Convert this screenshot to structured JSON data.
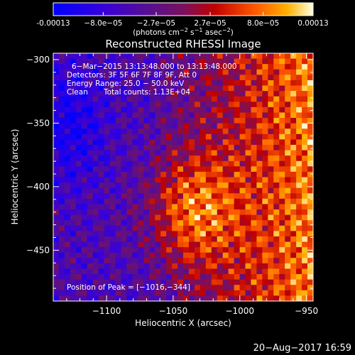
{
  "colorbar": {
    "ticks": [
      {
        "label": "-0.00013",
        "value": -0.00013
      },
      {
        "label": "−8.0e−05",
        "value": -8e-05
      },
      {
        "label": "−2.7e−05",
        "value": -2.7e-05
      },
      {
        "label": "2.7e−05",
        "value": 2.7e-05
      },
      {
        "label": "8.0e−05",
        "value": 8e-05
      },
      {
        "label": "0.00013",
        "value": 0.00013
      }
    ],
    "min": -0.00013,
    "max": 0.00013,
    "unit_prefix": "(photons cm",
    "unit_exp1": "−2",
    "unit_mid": " s",
    "unit_exp2": "−1",
    "unit_mid2": " asec",
    "unit_exp3": "−2",
    "unit_suffix": ")"
  },
  "title": "Reconstructed RHESSI Image",
  "annotations": {
    "line1": "6−Mar−2015 13:13:48.000 to 13:13:48.000",
    "line2": "Detectors: 3F 5F 6F 7F 8F 9F, Att 0",
    "line3": "Energy Range: 25.0 − 50.0 keV",
    "line4_left": "Clean",
    "line4_right": "Total counts: 1.13E+04",
    "peak": "Position of Peak = [−1016,−344]"
  },
  "axes": {
    "xlabel": "Heliocentric X (arcsec)",
    "ylabel": "Heliocentric Y (arcsec)",
    "x_range": [
      -1140,
      -945
    ],
    "y_range": [
      -490,
      -295
    ],
    "x_ticks": [
      {
        "label": "−1100",
        "value": -1100
      },
      {
        "label": "−1050",
        "value": -1050
      },
      {
        "label": "−1000",
        "value": -1000
      },
      {
        "label": "−950",
        "value": -950
      }
    ],
    "y_ticks": [
      {
        "label": "−300",
        "value": -300
      },
      {
        "label": "−350",
        "value": -350
      },
      {
        "label": "−400",
        "value": -400
      },
      {
        "label": "−450",
        "value": -450
      }
    ]
  },
  "timestamp": "20−Aug−2017 16:59"
}
